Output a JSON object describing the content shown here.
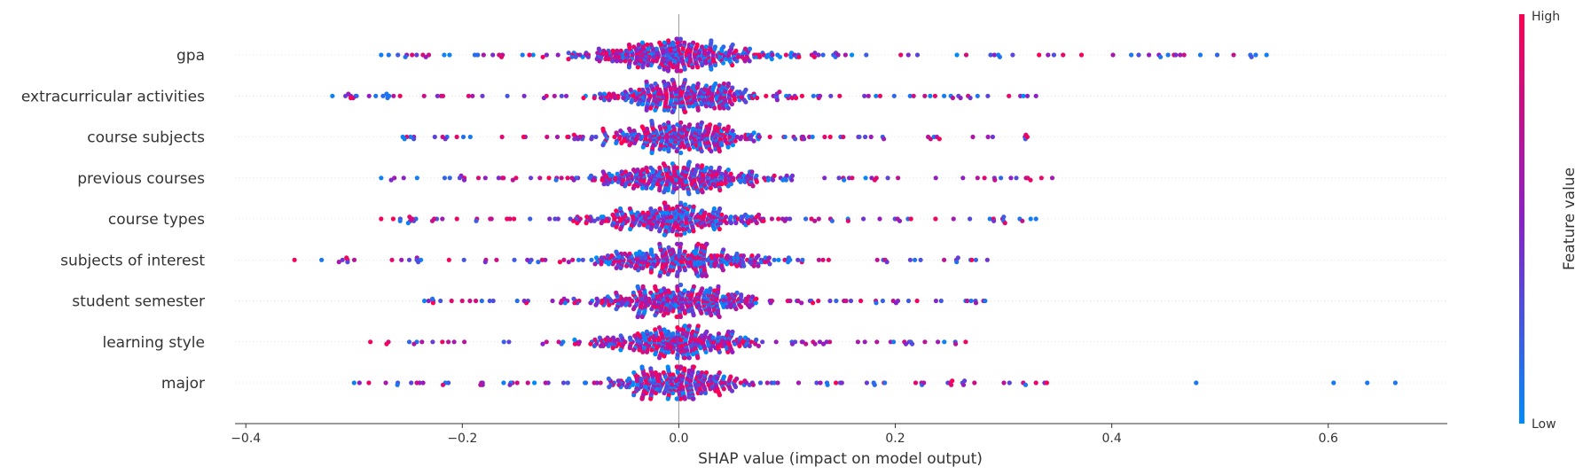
{
  "chart_data": {
    "type": "scatter",
    "subtype": "shap-beeswarm-summary",
    "title": "",
    "xlabel": "SHAP value (impact on model output)",
    "ylabel": "",
    "xlim": [
      -0.41,
      0.71
    ],
    "x_ticks": [
      -0.4,
      -0.2,
      0.0,
      0.2,
      0.4,
      0.6
    ],
    "x_tick_labels": [
      "−0.4",
      "−0.2",
      "0.0",
      "0.2",
      "0.4",
      "0.6"
    ],
    "grid": false,
    "zero_line": true,
    "colorbar": {
      "title": "Feature value",
      "high_label": "High",
      "low_label": "Low",
      "high_color": "#ff0052",
      "mid_color": "#8b20c8",
      "low_color": "#008bfb"
    },
    "features": [
      {
        "name": "gpa",
        "spread": 0.042,
        "core_count": 330,
        "tail_count": 110,
        "tail_range": [
          -0.275,
          0.545
        ],
        "sparse_low_color": true,
        "outliers": [
          [
            -0.275,
            0.05
          ],
          [
            -0.268,
            0.1
          ],
          [
            0.418,
            0.1
          ],
          [
            0.445,
            0.1
          ],
          [
            0.452,
            0.1
          ],
          [
            0.528,
            0.15
          ],
          [
            0.533,
            0.1
          ],
          [
            0.543,
            0.05
          ],
          [
            0.372,
            0.95
          ],
          [
            0.355,
            0.9
          ]
        ]
      },
      {
        "name": "extracurricular activities",
        "spread": 0.038,
        "core_count": 300,
        "tail_count": 100,
        "tail_range": [
          -0.32,
          0.33
        ],
        "sparse_low_color": false,
        "outliers": [
          [
            -0.32,
            0.05
          ],
          [
            -0.28,
            0.1
          ],
          [
            -0.27,
            0.1
          ],
          [
            0.33,
            0.5
          ],
          [
            0.305,
            0.9
          ]
        ]
      },
      {
        "name": "course subjects",
        "spread": 0.036,
        "core_count": 290,
        "tail_count": 90,
        "tail_range": [
          -0.255,
          0.322
        ],
        "sparse_low_color": false,
        "outliers": [
          [
            -0.255,
            0.05
          ],
          [
            0.322,
            0.95
          ],
          [
            0.29,
            0.4
          ]
        ]
      },
      {
        "name": "previous courses",
        "spread": 0.04,
        "core_count": 300,
        "tail_count": 100,
        "tail_range": [
          -0.275,
          0.345
        ],
        "sparse_low_color": false,
        "outliers": [
          [
            -0.275,
            0.05
          ],
          [
            0.345,
            0.6
          ],
          [
            0.335,
            0.9
          ]
        ]
      },
      {
        "name": "course types",
        "spread": 0.038,
        "core_count": 290,
        "tail_count": 90,
        "tail_range": [
          -0.275,
          0.33
        ],
        "sparse_low_color": false,
        "outliers": [
          [
            -0.275,
            0.95
          ],
          [
            -0.25,
            0.05
          ],
          [
            0.3,
            0.1
          ],
          [
            0.33,
            0.1
          ],
          [
            0.315,
            0.1
          ]
        ]
      },
      {
        "name": "subjects of interest",
        "spread": 0.04,
        "core_count": 300,
        "tail_count": 90,
        "tail_range": [
          -0.355,
          0.285
        ],
        "sparse_low_color": false,
        "outliers": [
          [
            -0.355,
            0.95
          ],
          [
            -0.33,
            0.1
          ],
          [
            -0.307,
            0.95
          ],
          [
            -0.265,
            0.9
          ],
          [
            0.285,
            0.4
          ]
        ]
      },
      {
        "name": "student semester",
        "spread": 0.04,
        "core_count": 300,
        "tail_count": 100,
        "tail_range": [
          -0.235,
          0.283
        ],
        "sparse_low_color": false,
        "outliers": [
          [
            -0.235,
            0.05
          ],
          [
            0.283,
            0.1
          ],
          [
            0.27,
            0.1
          ],
          [
            0.265,
            0.1
          ]
        ]
      },
      {
        "name": "learning style",
        "spread": 0.036,
        "core_count": 290,
        "tail_count": 90,
        "tail_range": [
          -0.285,
          0.265
        ],
        "sparse_low_color": false,
        "outliers": [
          [
            -0.285,
            0.95
          ],
          [
            -0.27,
            0.95
          ],
          [
            0.265,
            0.95
          ]
        ]
      },
      {
        "name": "major",
        "spread": 0.028,
        "core_count": 280,
        "tail_count": 100,
        "tail_range": [
          -0.3,
          0.34
        ],
        "sparse_low_color": false,
        "outliers": [
          [
            -0.3,
            0.05
          ],
          [
            -0.26,
            0.1
          ],
          [
            0.478,
            0.1
          ],
          [
            0.605,
            0.1
          ],
          [
            0.636,
            0.1
          ],
          [
            0.662,
            0.1
          ],
          [
            0.34,
            0.95
          ],
          [
            0.33,
            0.9
          ]
        ]
      }
    ]
  }
}
